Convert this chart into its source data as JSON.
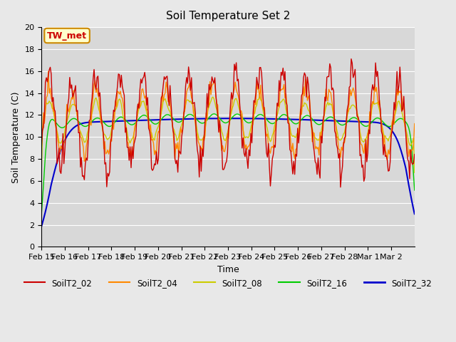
{
  "title": "Soil Temperature Set 2",
  "xlabel": "Time",
  "ylabel": "Soil Temperature (C)",
  "ylim": [
    0,
    20
  ],
  "yticks": [
    0,
    2,
    4,
    6,
    8,
    10,
    12,
    14,
    16,
    18,
    20
  ],
  "bg_color": "#e8e8e8",
  "plot_bg_color": "#d8d8d8",
  "annotation_text": "TW_met",
  "annotation_bg": "#ffffcc",
  "annotation_border": "#cc8800",
  "annotation_text_color": "#cc0000",
  "series_colors": {
    "SoilT2_02": "#cc0000",
    "SoilT2_04": "#ff8800",
    "SoilT2_08": "#cccc00",
    "SoilT2_16": "#00cc00",
    "SoilT2_32": "#0000cc"
  },
  "x_tick_labels": [
    "Feb 15",
    "Feb 16",
    "Feb 17",
    "Feb 18",
    "Feb 19",
    "Feb 20",
    "Feb 21",
    "Feb 22",
    "Feb 23",
    "Feb 24",
    "Feb 25",
    "Feb 26",
    "Feb 27",
    "Feb 28",
    "Mar 1",
    "Mar 2"
  ],
  "n_points": 384
}
